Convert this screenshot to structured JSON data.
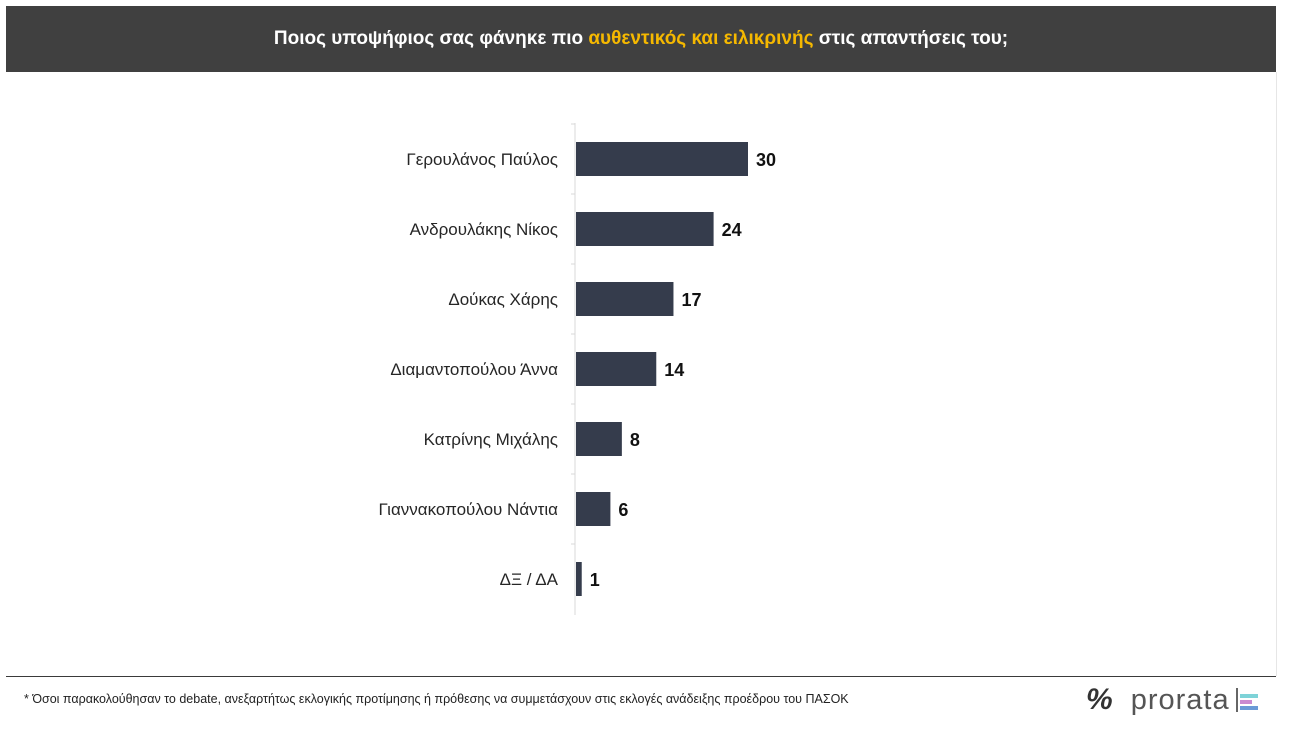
{
  "header": {
    "title_before": "Ποιος υποψήφιος σας φάνηκε πιο ",
    "title_highlight": "αυθεντικός και ειλικρινής",
    "title_after": " στις απαντήσεις του;"
  },
  "chart_data": {
    "type": "bar",
    "orientation": "horizontal",
    "categories": [
      "Γερουλάνος Παύλος",
      "Ανδρουλάκης Νίκος",
      "Δούκας Χάρης",
      "Διαμαντοπούλου Άννα",
      "Κατρίνης Μιχάλης",
      "Γιαννακοπούλου Νάντια",
      "ΔΞ / ΔΑ"
    ],
    "values": [
      30,
      24,
      17,
      14,
      8,
      6,
      1
    ],
    "value_labels": [
      "30",
      "24",
      "17",
      "14",
      "8",
      "6",
      "1"
    ],
    "bar_color": "#353c4c",
    "xlim": [
      0,
      30
    ],
    "grid": false,
    "legend": "none"
  },
  "footer": {
    "footnote": "* Όσοι παρακολούθησαν το debate, ανεξαρτήτως εκλογικής προτίμησης ή πρόθεσης να συμμετάσχουν στις εκλογές ανάδειξης προέδρου του ΠΑΣΟΚ",
    "logo_percent": "%",
    "logo_text": "prorata"
  },
  "colors": {
    "header_bg": "#404040",
    "highlight": "#f5b800",
    "logo_bars": [
      "#7ed3d8",
      "#c98ad0",
      "#6a9ad6"
    ]
  }
}
